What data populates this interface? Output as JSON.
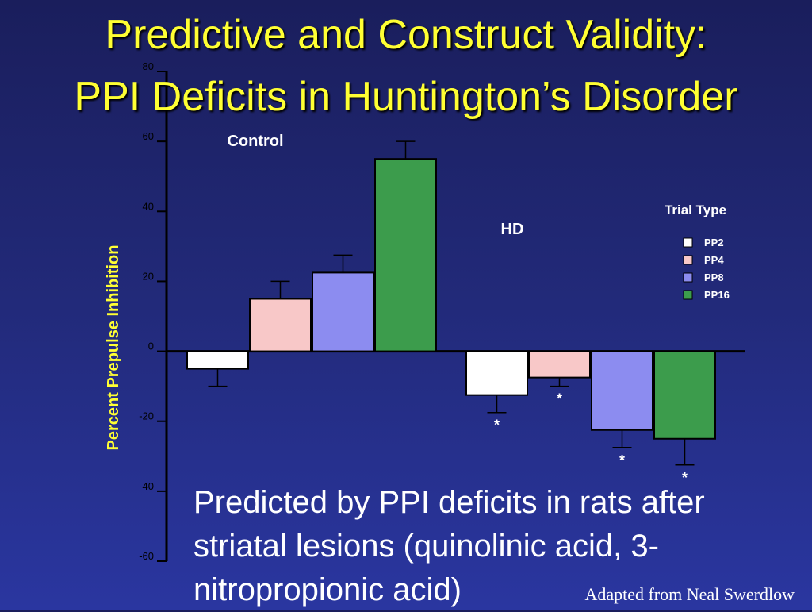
{
  "title": {
    "line1": "Predictive and Construct Validity:",
    "line2": "PPI Deficits in Huntington’s Disorder"
  },
  "chart_data": {
    "type": "bar",
    "title": "Predictive and Construct Validity: PPI Deficits in Huntington’s Disorder",
    "ylabel": "Percent Prepulse Inhibition",
    "xlabel": "",
    "ylim": [
      -60,
      80
    ],
    "yticks": [
      "80",
      "60",
      "40",
      "20",
      "0",
      "-20",
      "-40",
      "-60"
    ],
    "ytick_values": [
      80,
      60,
      40,
      20,
      0,
      -20,
      -40,
      -60
    ],
    "categories": [
      "Control",
      "HD"
    ],
    "legend_title": "Trial Type",
    "legend_position": "right",
    "series": [
      {
        "name": "PP2",
        "color": "#ffffff",
        "values": [
          -5,
          -12.5
        ],
        "errors": [
          5,
          5
        ],
        "significant": [
          false,
          true
        ]
      },
      {
        "name": "PP4",
        "color": "#f8c8c8",
        "values": [
          15,
          -7.5
        ],
        "errors": [
          5,
          2.5
        ],
        "significant": [
          false,
          true
        ]
      },
      {
        "name": "PP8",
        "color": "#8c8cf0",
        "values": [
          22.5,
          -22.5
        ],
        "errors": [
          5,
          5
        ],
        "significant": [
          false,
          true
        ]
      },
      {
        "name": "PP16",
        "color": "#3c9c4c",
        "values": [
          55,
          -25
        ],
        "errors": [
          5,
          7.5
        ],
        "significant": [
          false,
          true
        ]
      }
    ],
    "significance_marker": "*"
  },
  "caption": "Predicted by PPI deficits in rats after striatal lesions (quinolinic acid, 3-nitropropionic acid)",
  "credit": "Adapted from  Neal Swerdlow"
}
